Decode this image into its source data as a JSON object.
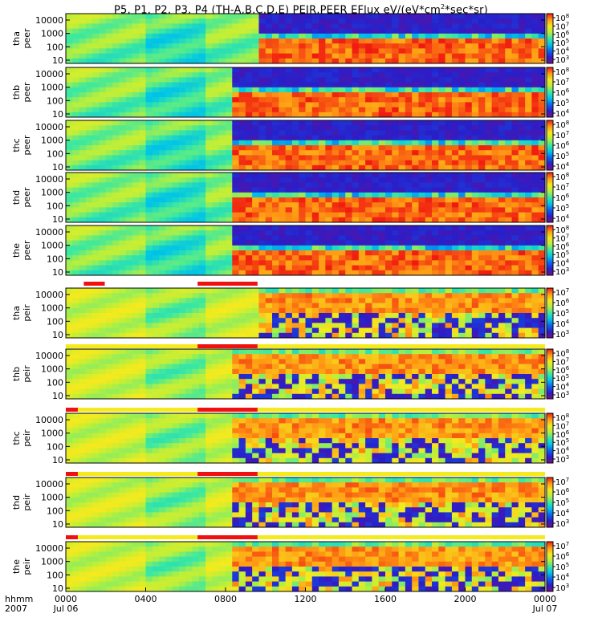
{
  "chart_data": {
    "type": "heatmap",
    "title_main": "P5, P1, P2, P3, P4 (TH-A,B,C,D,E) PEIR,PEER EFlux eV/(eV*cm",
    "title_sup": "2",
    "title_end": "*sec*sr)",
    "x_axis": {
      "top_label": "hhmm",
      "bottom_label": "2007",
      "ticks": [
        "0000",
        "0400",
        "0800",
        "1200",
        "1600",
        "2000",
        "0000"
      ],
      "tick_hours": [
        0,
        4,
        8,
        12,
        16,
        20,
        24
      ],
      "start_date": "Jul 06",
      "end_date": "Jul 07",
      "range_hours": [
        0,
        24
      ]
    },
    "y_scale": "log",
    "y_ticks": [
      "10",
      "100",
      "1000",
      "10000"
    ],
    "colormap": [
      "#7a0d8c",
      "#2a1ec8",
      "#0a63f2",
      "#00c4e8",
      "#3ce8a0",
      "#b8ef3c",
      "#f4ea1e",
      "#ff9c14",
      "#f01a10"
    ],
    "panels": [
      {
        "name": "thapeer",
        "probe": "tha",
        "species": "peer",
        "boundary_hours": 9.6,
        "cbar": [
          {
            "b": "10",
            "e": "8"
          },
          {
            "b": "10",
            "e": "7"
          },
          {
            "b": "10",
            "e": "6"
          },
          {
            "b": "10",
            "e": "5"
          },
          {
            "b": "10",
            "e": "4"
          },
          {
            "b": "10",
            "e": "3"
          }
        ]
      },
      {
        "name": "thbpeer",
        "probe": "thb",
        "species": "peer",
        "boundary_hours": 8.3,
        "cbar": [
          {
            "b": "10",
            "e": "8"
          },
          {
            "b": "10",
            "e": "7"
          },
          {
            "b": "10",
            "e": "6"
          },
          {
            "b": "10",
            "e": "5"
          },
          {
            "b": "10",
            "e": "4"
          }
        ]
      },
      {
        "name": "thcpeer",
        "probe": "thc",
        "species": "peer",
        "boundary_hours": 8.5,
        "cbar": [
          {
            "b": "10",
            "e": "8"
          },
          {
            "b": "10",
            "e": "7"
          },
          {
            "b": "10",
            "e": "6"
          },
          {
            "b": "10",
            "e": "5"
          },
          {
            "b": "10",
            "e": "4"
          }
        ]
      },
      {
        "name": "thdpeer",
        "probe": "thd",
        "species": "peer",
        "boundary_hours": 8.4,
        "cbar": [
          {
            "b": "10",
            "e": "8"
          },
          {
            "b": "10",
            "e": "7"
          },
          {
            "b": "10",
            "e": "6"
          },
          {
            "b": "10",
            "e": "5"
          },
          {
            "b": "10",
            "e": "4"
          }
        ]
      },
      {
        "name": "thepeer",
        "probe": "the",
        "species": "peer",
        "boundary_hours": 8.4,
        "cbar": [
          {
            "b": "10",
            "e": "8"
          },
          {
            "b": "10",
            "e": "7"
          },
          {
            "b": "10",
            "e": "6"
          },
          {
            "b": "10",
            "e": "5"
          },
          {
            "b": "10",
            "e": "4"
          },
          {
            "b": "10",
            "e": "3"
          }
        ]
      },
      {
        "name": "thapeir",
        "probe": "tha",
        "species": "peir",
        "boundary_hours": 9.6,
        "cbar": [
          {
            "b": "10",
            "e": "7"
          },
          {
            "b": "10",
            "e": "6"
          },
          {
            "b": "10",
            "e": "5"
          },
          {
            "b": "10",
            "e": "4"
          },
          {
            "b": "10",
            "e": "3"
          }
        ]
      },
      {
        "name": "thbpeir",
        "probe": "thb",
        "species": "peir",
        "boundary_hours": 8.3,
        "cbar": [
          {
            "b": "10",
            "e": "8"
          },
          {
            "b": "10",
            "e": "7"
          },
          {
            "b": "10",
            "e": "6"
          },
          {
            "b": "10",
            "e": "5"
          },
          {
            "b": "10",
            "e": "4"
          },
          {
            "b": "10",
            "e": "3"
          }
        ]
      },
      {
        "name": "thcpeir",
        "probe": "thc",
        "species": "peir",
        "boundary_hours": 8.5,
        "cbar": [
          {
            "b": "10",
            "e": "8"
          },
          {
            "b": "10",
            "e": "7"
          },
          {
            "b": "10",
            "e": "6"
          },
          {
            "b": "10",
            "e": "5"
          },
          {
            "b": "10",
            "e": "4"
          },
          {
            "b": "10",
            "e": "3"
          }
        ]
      },
      {
        "name": "thdpeir",
        "probe": "thd",
        "species": "peir",
        "boundary_hours": 8.4,
        "cbar": [
          {
            "b": "10",
            "e": "7"
          },
          {
            "b": "10",
            "e": "6"
          },
          {
            "b": "10",
            "e": "5"
          },
          {
            "b": "10",
            "e": "4"
          },
          {
            "b": "10",
            "e": "3"
          }
        ]
      },
      {
        "name": "thepeir",
        "probe": "the",
        "species": "peir",
        "boundary_hours": 8.4,
        "cbar": [
          {
            "b": "10",
            "e": "7"
          },
          {
            "b": "10",
            "e": "6"
          },
          {
            "b": "10",
            "e": "5"
          },
          {
            "b": "10",
            "e": "4"
          },
          {
            "b": "10",
            "e": "3"
          }
        ]
      }
    ],
    "mode_bars": [
      {
        "after_panel": 4,
        "segments": [
          {
            "from": 0.0,
            "to": 24.0,
            "color": "#ffffff"
          },
          {
            "from": 0.9,
            "to": 1.95,
            "color": "#f01010"
          },
          {
            "from": 6.6,
            "to": 9.6,
            "color": "#f01010"
          }
        ]
      },
      {
        "after_panel": 5,
        "segments": [
          {
            "from": 0.0,
            "to": 24.0,
            "color": "#f4ea1e"
          },
          {
            "from": 6.6,
            "to": 9.6,
            "color": "#f01010"
          }
        ]
      },
      {
        "after_panel": 6,
        "segments": [
          {
            "from": 0.0,
            "to": 24.0,
            "color": "#f4ea1e"
          },
          {
            "from": 0.0,
            "to": 0.6,
            "color": "#f01010"
          },
          {
            "from": 6.6,
            "to": 9.6,
            "color": "#f01010"
          }
        ]
      },
      {
        "after_panel": 7,
        "segments": [
          {
            "from": 0.0,
            "to": 24.0,
            "color": "#f4ea1e"
          },
          {
            "from": 0.0,
            "to": 0.6,
            "color": "#f01010"
          },
          {
            "from": 6.6,
            "to": 9.6,
            "color": "#f01010"
          }
        ]
      },
      {
        "after_panel": 8,
        "segments": [
          {
            "from": 0.0,
            "to": 24.0,
            "color": "#f4ea1e"
          },
          {
            "from": 0.0,
            "to": 0.6,
            "color": "#f01010"
          },
          {
            "from": 6.6,
            "to": 9.6,
            "color": "#f01010"
          }
        ]
      }
    ]
  }
}
